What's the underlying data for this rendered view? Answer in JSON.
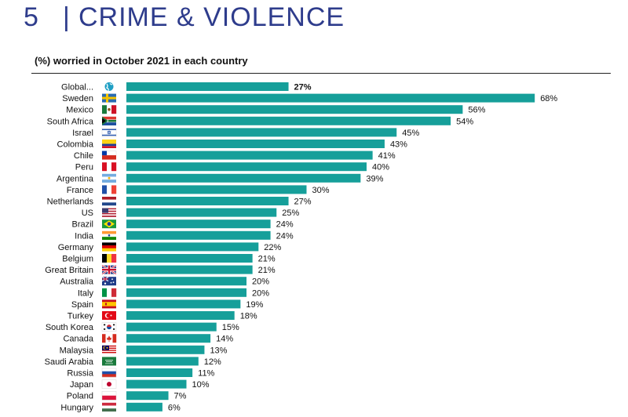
{
  "header": {
    "number": "5",
    "separator": "|",
    "title": "CRIME & VIOLENCE"
  },
  "colors": {
    "bar": "#169f9a",
    "header": "#2e3c8c",
    "globe": "#1f9fc4"
  },
  "chart_data": {
    "type": "bar",
    "orientation": "horizontal",
    "title": "(%) worried in October 2021 in each country",
    "xlim": [
      0,
      70
    ],
    "grid": false,
    "value_suffix": "%",
    "categories": [
      "Global...",
      "Sweden",
      "Mexico",
      "South Africa",
      "Israel",
      "Colombia",
      "Chile",
      "Peru",
      "Argentina",
      "France",
      "Netherlands",
      "US",
      "Brazil",
      "India",
      "Germany",
      "Belgium",
      "Great Britain",
      "Australia",
      "Italy",
      "Spain",
      "Turkey",
      "South Korea",
      "Canada",
      "Malaysia",
      "Saudi Arabia",
      "Russia",
      "Japan",
      "Poland",
      "Hungary"
    ],
    "values": [
      27,
      68,
      56,
      54,
      45,
      43,
      41,
      40,
      39,
      30,
      27,
      25,
      24,
      24,
      22,
      21,
      21,
      20,
      20,
      19,
      18,
      15,
      14,
      13,
      12,
      11,
      10,
      7,
      6
    ],
    "flags": [
      "globe",
      "sweden",
      "mexico",
      "south-africa",
      "israel",
      "colombia",
      "chile",
      "peru",
      "argentina",
      "france",
      "netherlands",
      "us",
      "brazil",
      "india",
      "germany",
      "belgium",
      "great-britain",
      "australia",
      "italy",
      "spain",
      "turkey",
      "south-korea",
      "canada",
      "malaysia",
      "saudi-arabia",
      "russia",
      "japan",
      "poland",
      "hungary"
    ],
    "highlight_index": 0
  }
}
